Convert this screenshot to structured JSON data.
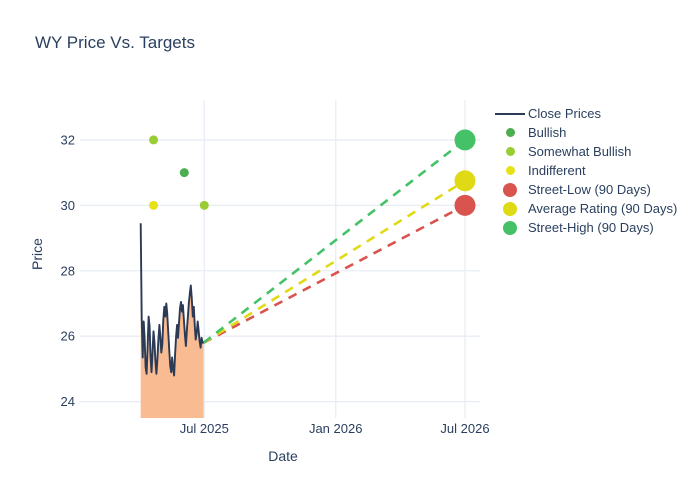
{
  "title": "WY Price Vs. Targets",
  "colors": {
    "text": "#2a3f5f",
    "grid": "#e8edf5",
    "background": "#ffffff",
    "close_line": "#2b3a55",
    "close_fill": "#f9bc92"
  },
  "chart_data": {
    "type": "line",
    "title": "WY Price Vs. Targets",
    "xlabel": "Date",
    "ylabel": "Price",
    "grid": true,
    "legend_position": "right",
    "ylim": [
      23.5,
      33.22
    ],
    "xlim": [
      "2025-01-08",
      "2026-07-22"
    ],
    "y_ticks": [
      24,
      26,
      28,
      30,
      32
    ],
    "x_ticks": [
      {
        "label": "Jul 2025",
        "date": "2025-07-01"
      },
      {
        "label": "Jan 2026",
        "date": "2026-01-01"
      },
      {
        "label": "Jul 2026",
        "date": "2026-07-01"
      }
    ],
    "close_prices": {
      "name": "Close Prices",
      "legend_swatch": "line",
      "color": "#2b3a55",
      "fill_color": "#f9bc92",
      "date_start": "2025-04-03",
      "date_end": "2025-06-30",
      "values": [
        29.45,
        26.55,
        25.35,
        26.45,
        25.95,
        25.05,
        24.85,
        25.65,
        26.6,
        26.3,
        25.4,
        24.9,
        25.5,
        26.15,
        25.8,
        25.25,
        24.85,
        25.3,
        25.9,
        26.35,
        25.95,
        25.5,
        25.75,
        26.5,
        26.9,
        26.6,
        27.0,
        26.7,
        26.15,
        25.6,
        25.1,
        24.9,
        25.35,
        25.0,
        24.8,
        25.45,
        26.0,
        26.35,
        25.95,
        26.4,
        26.85,
        27.05,
        26.75,
        26.95,
        26.5,
        26.05,
        25.7,
        26.2,
        26.6,
        27.0,
        27.3,
        27.55,
        27.15,
        26.6,
        26.9,
        26.35,
        25.9,
        26.1,
        26.45,
        26.15,
        25.85,
        25.65,
        25.95,
        25.8,
        25.8
      ]
    },
    "ratings": [
      {
        "name": "Bullish",
        "legend_swatch": "dot",
        "color": "#4bae4f",
        "points": [
          {
            "date": "2025-06-03",
            "value": 31
          }
        ]
      },
      {
        "name": "Somewhat Bullish",
        "legend_swatch": "dot",
        "color": "#9acd32",
        "points": [
          {
            "date": "2025-04-21",
            "value": 32
          },
          {
            "date": "2025-07-01",
            "value": 30
          }
        ]
      },
      {
        "name": "Indifferent",
        "legend_swatch": "dot",
        "color": "#e7e117",
        "points": [
          {
            "date": "2025-04-21",
            "value": 30
          }
        ]
      }
    ],
    "targets": [
      {
        "name": "Street-Low (90 Days)",
        "legend_swatch": "circle",
        "color": "#d9534f",
        "start": {
          "date": "2025-06-30",
          "value": 25.8
        },
        "end": {
          "date": "2026-07-01",
          "value": 30.0
        }
      },
      {
        "name": "Average Rating (90 Days)",
        "legend_swatch": "circle",
        "color": "#e0da16",
        "start": {
          "date": "2025-06-30",
          "value": 25.8
        },
        "end": {
          "date": "2026-07-01",
          "value": 30.75
        }
      },
      {
        "name": "Street-High (90 Days)",
        "legend_swatch": "circle",
        "color": "#45c268",
        "start": {
          "date": "2025-06-30",
          "value": 25.8
        },
        "end": {
          "date": "2026-07-01",
          "value": 32.0
        }
      }
    ]
  }
}
